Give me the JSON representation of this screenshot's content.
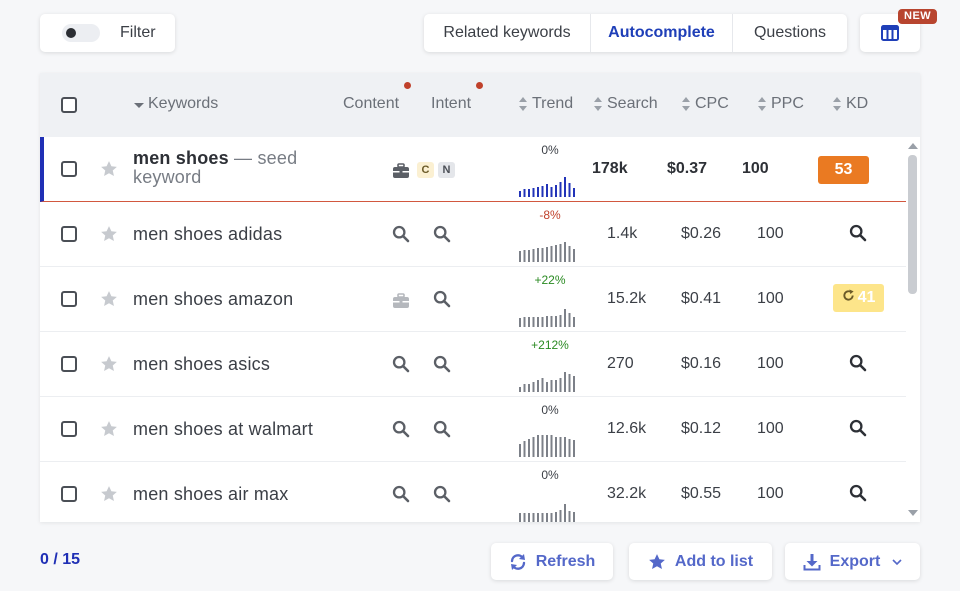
{
  "toolbar": {
    "filter_label": "Filter",
    "tabs": [
      {
        "label": "Related keywords",
        "active": false
      },
      {
        "label": "Autocomplete",
        "active": true
      },
      {
        "label": "Questions",
        "active": false
      }
    ],
    "columns_icon": "table-columns-icon",
    "new_badge": "NEW"
  },
  "table": {
    "headers": {
      "keywords": "Keywords",
      "content": "Content",
      "intent": "Intent",
      "trend": "Trend",
      "search": "Search",
      "cpc": "CPC",
      "ppc": "PPC",
      "kd": "KD"
    },
    "rows": [
      {
        "keyword": "men shoes",
        "suffix": " — seed keyword",
        "content_icon": "toolbox-icon",
        "intent": [
          "C",
          "N"
        ],
        "trend": "0%",
        "trend_sign": "neutral",
        "spark": [
          6,
          8,
          8,
          9,
          10,
          11,
          13,
          10,
          12,
          15,
          20,
          14,
          9
        ],
        "search": "178k",
        "cpc": "$0.37",
        "ppc": "100",
        "kd": "53",
        "kd_color": "#ea7a22",
        "seed": true
      },
      {
        "keyword": "men shoes adidas",
        "content_icon": "search-icon",
        "intent_icon": "search-icon",
        "trend": "-8%",
        "trend_sign": "negative",
        "spark": [
          11,
          12,
          12,
          13,
          14,
          14,
          15,
          16,
          17,
          18,
          20,
          16,
          13
        ],
        "search": "1.4k",
        "cpc": "$0.26",
        "ppc": "100",
        "kd_icon": "search-icon"
      },
      {
        "keyword": "men shoes amazon",
        "content_icon": "toolbox-icon",
        "intent_icon": "search-icon",
        "trend": "+22%",
        "trend_sign": "positive",
        "spark": [
          9,
          10,
          10,
          10,
          10,
          10,
          11,
          11,
          11,
          12,
          18,
          14,
          10
        ],
        "search": "15.2k",
        "cpc": "$0.41",
        "ppc": "100",
        "kd": "41",
        "kd_color": "#fde58a",
        "kd_refresh": true
      },
      {
        "keyword": "men shoes asics",
        "content_icon": "search-icon",
        "intent_icon": "search-icon",
        "trend": "+212%",
        "trend_sign": "positive",
        "spark": [
          5,
          8,
          8,
          10,
          12,
          14,
          10,
          12,
          12,
          14,
          20,
          18,
          16
        ],
        "search": "270",
        "cpc": "$0.16",
        "ppc": "100",
        "kd_icon": "search-icon"
      },
      {
        "keyword": "men shoes at walmart",
        "content_icon": "search-icon",
        "intent_icon": "search-icon",
        "trend": "0%",
        "trend_sign": "neutral",
        "spark": [
          13,
          16,
          18,
          20,
          22,
          22,
          22,
          22,
          20,
          20,
          20,
          18,
          17
        ],
        "search": "12.6k",
        "cpc": "$0.12",
        "ppc": "100",
        "kd_icon": "search-icon"
      },
      {
        "keyword": "men shoes air max",
        "content_icon": "search-icon",
        "intent_icon": "search-icon",
        "trend": "0%",
        "trend_sign": "neutral",
        "spark": [
          9,
          9,
          9,
          9,
          9,
          9,
          9,
          9,
          10,
          12,
          18,
          11,
          10
        ],
        "search": "32.2k",
        "cpc": "$0.55",
        "ppc": "100",
        "kd_icon": "search-icon"
      }
    ]
  },
  "footer": {
    "selected": "0",
    "separator": "/",
    "total": "15",
    "refresh_label": "Refresh",
    "add_label": "Add to list",
    "export_label": "Export"
  },
  "colors": {
    "accent": "#1f3fb8",
    "footer_button_text": "#5468c9",
    "positive": "#2a8a22",
    "negative": "#c0412b",
    "kd_hard": "#ea7a22",
    "kd_medium": "#fde58a"
  }
}
